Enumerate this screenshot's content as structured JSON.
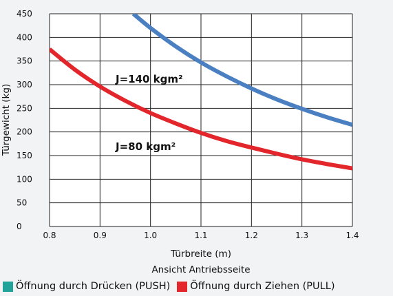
{
  "chart_data": {
    "type": "line",
    "xlabel": "Türbreite (m)",
    "ylabel": "Türgewicht (kg)",
    "subtitle": "Ansicht Antriebsseite",
    "xlim": [
      0.8,
      1.4
    ],
    "ylim": [
      0,
      450
    ],
    "x_ticks": [
      "0.8",
      "0.9",
      "1.0",
      "1.1",
      "1.2",
      "1.3",
      "1.4"
    ],
    "y_ticks": [
      "0",
      "50",
      "100",
      "150",
      "200",
      "250",
      "300",
      "350",
      "400",
      "450"
    ],
    "grid": true,
    "series": [
      {
        "name": "J=140 kgm²",
        "color": "#4a7fc1",
        "x": [
          0.966,
          1.0,
          1.05,
          1.1,
          1.15,
          1.2,
          1.25,
          1.3,
          1.35,
          1.4
        ],
        "y": [
          450,
          420,
          381,
          347,
          318,
          292,
          269,
          249,
          231,
          215
        ]
      },
      {
        "name": "J=80 kgm²",
        "color": "#e3262b",
        "x": [
          0.8,
          0.85,
          0.9,
          0.95,
          1.0,
          1.05,
          1.1,
          1.15,
          1.2,
          1.25,
          1.3,
          1.35,
          1.4
        ],
        "y": [
          375,
          332,
          296,
          266,
          240,
          218,
          198,
          181,
          167,
          154,
          142,
          132,
          123
        ]
      }
    ],
    "annotations": [
      {
        "text": "J=140 kgm²",
        "x": 0.925,
        "y": 312
      },
      {
        "text": "J=80 kgm²",
        "x": 0.925,
        "y": 170
      }
    ]
  },
  "legend": [
    {
      "label": "Öffnung durch Drücken (PUSH)",
      "color": "#22a39a"
    },
    {
      "label": "Öffnung durch Ziehen (PULL)",
      "color": "#e3262b"
    }
  ]
}
